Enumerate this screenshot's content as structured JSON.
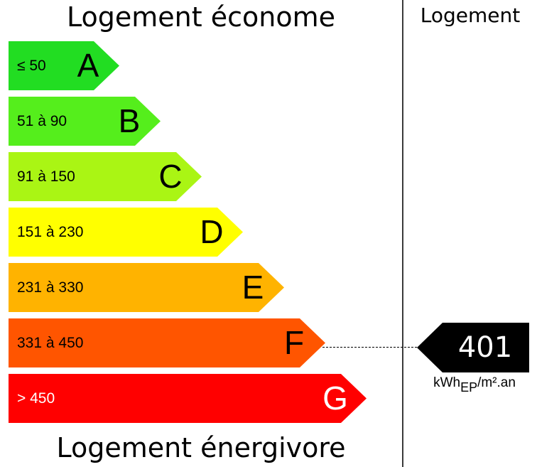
{
  "header": {
    "top_label": "Logement économe",
    "bottom_label": "Logement énergivore",
    "column_label": "Logement"
  },
  "bands": [
    {
      "letter": "A",
      "range": "≤ 50",
      "color": "#22dd22"
    },
    {
      "letter": "B",
      "range": "51 à 90",
      "color": "#55ee1c"
    },
    {
      "letter": "C",
      "range": "91 à 150",
      "color": "#aaf514"
    },
    {
      "letter": "D",
      "range": "151 à 230",
      "color": "#ffff00"
    },
    {
      "letter": "E",
      "range": "231 à 330",
      "color": "#ffb300"
    },
    {
      "letter": "F",
      "range": "331 à 450",
      "color": "#ff5500"
    },
    {
      "letter": "G",
      "range": "> 450",
      "color": "#ff0000"
    }
  ],
  "indicator": {
    "value": "401",
    "band": "F",
    "color": "#000000",
    "unit_main": "kWh",
    "unit_sub": "EP",
    "unit_tail": "/m².an"
  }
}
